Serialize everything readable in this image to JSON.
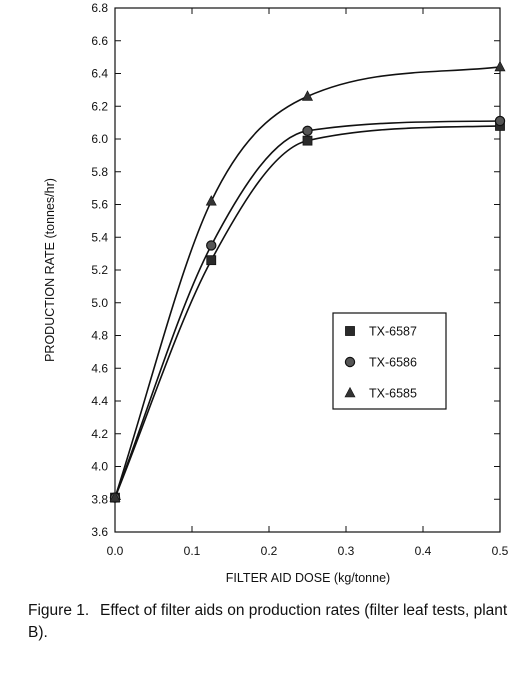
{
  "chart_data": {
    "type": "line",
    "xlabel": "FILTER AID DOSE (kg/tonne)",
    "ylabel": "PRODUCTION RATE (tonnes/hr)",
    "xlim": [
      0.0,
      0.5
    ],
    "ylim": [
      3.6,
      6.8
    ],
    "xticks": [
      "0.0",
      "0.1",
      "0.2",
      "0.3",
      "0.4",
      "0.5"
    ],
    "yticks": [
      "3.6",
      "3.8",
      "4.0",
      "4.2",
      "4.4",
      "4.6",
      "4.8",
      "5.0",
      "5.2",
      "5.4",
      "5.6",
      "5.8",
      "6.0",
      "6.2",
      "6.4",
      "6.6",
      "6.8"
    ],
    "grid": false,
    "legend_position": "right-middle",
    "x": [
      0.0,
      0.125,
      0.25,
      0.5
    ],
    "series": [
      {
        "name": "TX-6587",
        "marker": "square",
        "values": [
          3.81,
          5.26,
          5.99,
          6.08
        ]
      },
      {
        "name": "TX-6586",
        "marker": "circle",
        "values": [
          3.81,
          5.35,
          6.05,
          6.11
        ]
      },
      {
        "name": "TX-6585",
        "marker": "triangle",
        "values": [
          3.81,
          5.62,
          6.26,
          6.44
        ]
      }
    ]
  },
  "caption": {
    "number": "Figure 1.",
    "text": "Effect of filter aids on production rates (filter leaf tests, plant B)."
  }
}
